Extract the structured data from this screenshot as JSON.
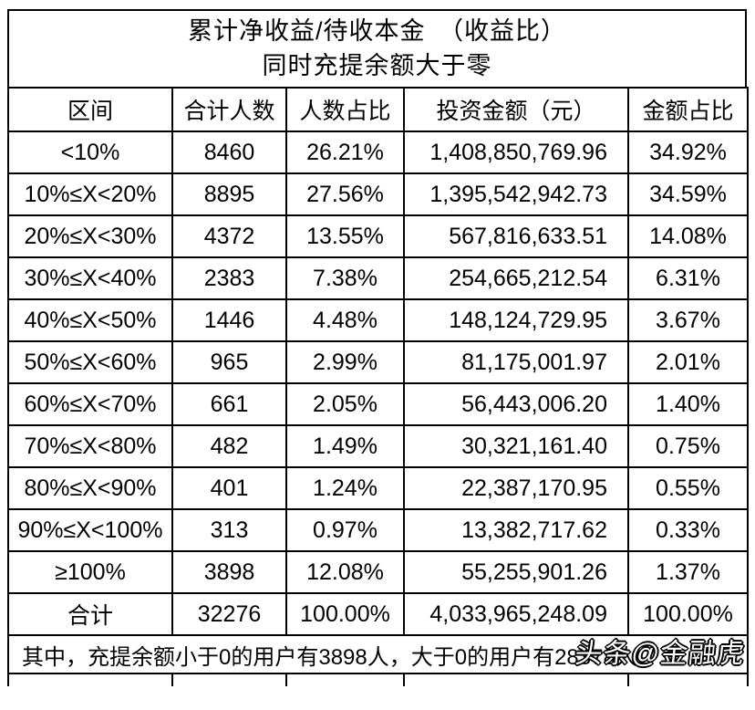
{
  "title": {
    "line1": "累计净收益/待收本金　（收益比）",
    "line2": "同时充提余额大于零"
  },
  "table": {
    "headers": [
      "区间",
      "合计人数",
      "人数占比",
      "投资金额（元）",
      "金额占比"
    ],
    "rows": [
      [
        "<10%",
        "8460",
        "26.21%",
        "1,408,850,769.96",
        "34.92%"
      ],
      [
        "10%≤X<20%",
        "8895",
        "27.56%",
        "1,395,542,942.73",
        "34.59%"
      ],
      [
        "20%≤X<30%",
        "4372",
        "13.55%",
        "567,816,633.51",
        "14.08%"
      ],
      [
        "30%≤X<40%",
        "2383",
        "7.38%",
        "254,665,212.54",
        "6.31%"
      ],
      [
        "40%≤X<50%",
        "1446",
        "4.48%",
        "148,124,729.95",
        "3.67%"
      ],
      [
        "50%≤X<60%",
        "965",
        "2.99%",
        "81,175,001.97",
        "2.01%"
      ],
      [
        "60%≤X<70%",
        "661",
        "2.05%",
        "56,443,006.20",
        "1.40%"
      ],
      [
        "70%≤X<80%",
        "482",
        "1.49%",
        "30,321,161.40",
        "0.75%"
      ],
      [
        "80%≤X<90%",
        "401",
        "1.24%",
        "22,387,170.95",
        "0.55%"
      ],
      [
        "90%≤X<100%",
        "313",
        "0.97%",
        "13,382,717.62",
        "0.33%"
      ],
      [
        "≥100%",
        "3898",
        "12.08%",
        "55,255,901.26",
        "1.37%"
      ]
    ],
    "total_row": [
      "合计",
      "32276",
      "100.00%",
      "4,033,965,248.09",
      "100.00%"
    ],
    "footnote": "其中，充提余额小于0的用户有3898人，大于0的用户有28378人"
  },
  "watermark": "头条@金融虎",
  "colors": {
    "border": "#000000",
    "text": "#000000",
    "background": "#ffffff",
    "watermark_fill": "#ffffff"
  },
  "chart_data": {
    "type": "table",
    "title": "累计净收益/待收本金　（收益比）",
    "subtitle": "同时充提余额大于零",
    "columns": [
      "区间",
      "合计人数",
      "人数占比",
      "投资金额（元）",
      "金额占比"
    ],
    "rows": [
      [
        "<10%",
        8460,
        "26.21%",
        1408850769.96,
        "34.92%"
      ],
      [
        "10%≤X<20%",
        8895,
        "27.56%",
        1395542942.73,
        "34.59%"
      ],
      [
        "20%≤X<30%",
        4372,
        "13.55%",
        567816633.51,
        "14.08%"
      ],
      [
        "30%≤X<40%",
        2383,
        "7.38%",
        254665212.54,
        "6.31%"
      ],
      [
        "40%≤X<50%",
        1446,
        "4.48%",
        148124729.95,
        "3.67%"
      ],
      [
        "50%≤X<60%",
        965,
        "2.99%",
        81175001.97,
        "2.01%"
      ],
      [
        "60%≤X<70%",
        661,
        "2.05%",
        56443006.2,
        "1.40%"
      ],
      [
        "70%≤X<80%",
        482,
        "1.49%",
        30321161.4,
        "0.75%"
      ],
      [
        "80%≤X<90%",
        401,
        "1.24%",
        22387170.95,
        "0.55%"
      ],
      [
        "90%≤X<100%",
        313,
        "0.97%",
        13382717.62,
        "0.33%"
      ],
      [
        "≥100%",
        3898,
        "12.08%",
        55255901.26,
        "1.37%"
      ]
    ],
    "total": [
      "合计",
      32276,
      "100.00%",
      4033965248.09,
      "100.00%"
    ],
    "footnote": "其中，充提余额小于0的用户有3898人，大于0的用户有28378人"
  }
}
